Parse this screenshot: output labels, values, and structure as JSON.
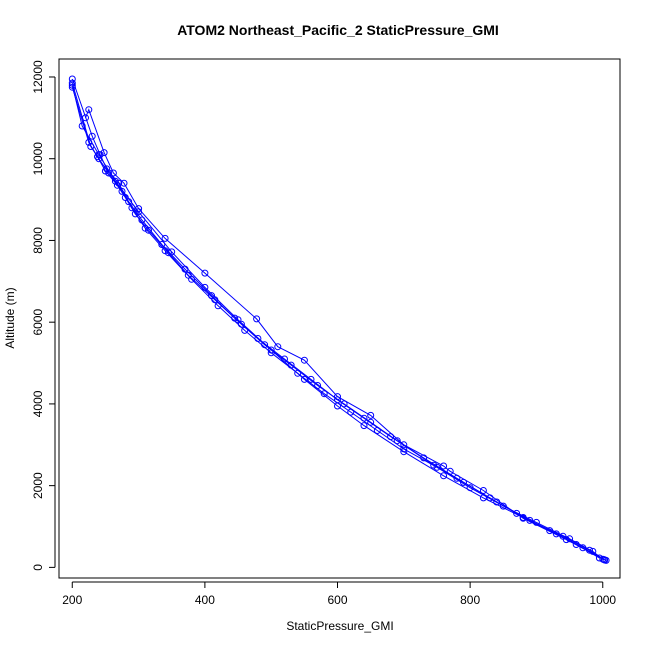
{
  "chart_data": {
    "type": "scatter",
    "title": "ATOM2 Northeast_Pacific_2 StaticPressure_GMI",
    "xlabel": "StaticPressure_GMI",
    "ylabel": "Altitude (m)",
    "xlim": [
      180,
      1026
    ],
    "ylim": [
      -260,
      12440
    ],
    "xticks": [
      200,
      400,
      600,
      800,
      1000
    ],
    "yticks": [
      0,
      2000,
      4000,
      6000,
      8000,
      10000,
      12000
    ],
    "grid": false,
    "legend": "none",
    "marker": "open-circle",
    "connected": true,
    "color": "#0000ff",
    "series": [
      {
        "values": [
          [
            1003,
            180
          ],
          [
            980,
            420
          ],
          [
            940,
            760
          ],
          [
            880,
            1220
          ],
          [
            820,
            1700
          ],
          [
            760,
            2240
          ],
          [
            700,
            2830
          ],
          [
            640,
            3470
          ],
          [
            600,
            3950
          ],
          [
            550,
            4600
          ],
          [
            500,
            5320
          ],
          [
            450,
            6060
          ],
          [
            400,
            6850
          ],
          [
            350,
            7720
          ],
          [
            300,
            8700
          ],
          [
            265,
            9450
          ],
          [
            240,
            10100
          ],
          [
            215,
            10800
          ],
          [
            200,
            11800
          ]
        ]
      },
      {
        "values": [
          [
            1000,
            200
          ],
          [
            985,
            390
          ],
          [
            950,
            700
          ],
          [
            900,
            1100
          ],
          [
            850,
            1500
          ],
          [
            800,
            1950
          ],
          [
            750,
            2450
          ],
          [
            700,
            2900
          ],
          [
            660,
            3350
          ],
          [
            620,
            3800
          ],
          [
            580,
            4250
          ],
          [
            540,
            4750
          ],
          [
            500,
            5250
          ],
          [
            460,
            5800
          ],
          [
            420,
            6400
          ],
          [
            380,
            7050
          ],
          [
            340,
            7750
          ],
          [
            310,
            8300
          ],
          [
            290,
            8800
          ],
          [
            275,
            9200
          ],
          [
            255,
            9650
          ],
          [
            240,
            10000
          ],
          [
            225,
            10400
          ],
          [
            200,
            11750
          ]
        ]
      },
      {
        "values": [
          [
            1005,
            170
          ],
          [
            970,
            480
          ],
          [
            930,
            820
          ],
          [
            890,
            1150
          ],
          [
            840,
            1600
          ],
          [
            790,
            2080
          ],
          [
            745,
            2500
          ],
          [
            690,
            3100
          ],
          [
            650,
            3550
          ],
          [
            610,
            4000
          ],
          [
            570,
            4450
          ],
          [
            530,
            4950
          ],
          [
            490,
            5450
          ],
          [
            455,
            5950
          ],
          [
            415,
            6550
          ],
          [
            375,
            7150
          ],
          [
            345,
            7700
          ],
          [
            315,
            8250
          ],
          [
            295,
            8650
          ],
          [
            280,
            9050
          ],
          [
            268,
            9350
          ],
          [
            250,
            9700
          ],
          [
            238,
            10050
          ],
          [
            228,
            10300
          ],
          [
            200,
            11850
          ]
        ]
      },
      {
        "values": [
          [
            995,
            230
          ],
          [
            960,
            560
          ],
          [
            920,
            900
          ],
          [
            870,
            1320
          ],
          [
            830,
            1700
          ],
          [
            780,
            2180
          ],
          [
            730,
            2680
          ],
          [
            680,
            3200
          ],
          [
            640,
            3650
          ],
          [
            600,
            4100
          ],
          [
            560,
            4600
          ],
          [
            520,
            5100
          ],
          [
            480,
            5600
          ],
          [
            445,
            6100
          ],
          [
            410,
            6650
          ],
          [
            370,
            7300
          ],
          [
            335,
            7900
          ],
          [
            305,
            8500
          ],
          [
            285,
            8950
          ],
          [
            270,
            9400
          ],
          [
            252,
            9750
          ],
          [
            242,
            10100
          ],
          [
            230,
            10550
          ],
          [
            200,
            11950
          ]
        ]
      },
      {
        "values": [
          [
            1002,
            190
          ],
          [
            945,
            680
          ],
          [
            880,
            1200
          ],
          [
            820,
            1880
          ],
          [
            770,
            2350
          ],
          [
            760,
            2480
          ],
          [
            700,
            3000
          ],
          [
            650,
            3720
          ],
          [
            600,
            4180
          ],
          [
            550,
            5070
          ],
          [
            510,
            5400
          ],
          [
            478,
            6080
          ],
          [
            400,
            7200
          ],
          [
            340,
            8050
          ],
          [
            300,
            8780
          ],
          [
            278,
            9400
          ],
          [
            262,
            9650
          ],
          [
            248,
            10150
          ],
          [
            225,
            11200
          ],
          [
            220,
            11000
          ]
        ]
      }
    ]
  }
}
